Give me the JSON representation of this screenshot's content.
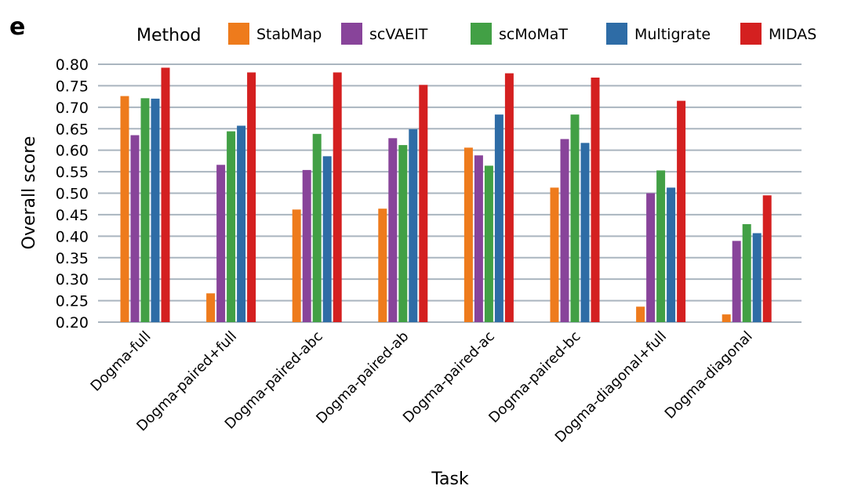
{
  "panel_label": "e",
  "chart_data": {
    "type": "bar",
    "title": "",
    "xlabel": "Task",
    "ylabel": "Overall score",
    "ylim": [
      0.2,
      0.8
    ],
    "yticks": [
      "0.20",
      "0.25",
      "0.30",
      "0.35",
      "0.40",
      "0.45",
      "0.50",
      "0.55",
      "0.60",
      "0.65",
      "0.70",
      "0.75",
      "0.80"
    ],
    "grid": true,
    "legend": {
      "title": "Method",
      "placement": "top"
    },
    "categories": [
      "Dogma-full",
      "Dogma-paired+full",
      "Dogma-paired-abc",
      "Dogma-paired-ab",
      "Dogma-paired-ac",
      "Dogma-paired-bc",
      "Dogma-diagonal+full",
      "Dogma-diagonal"
    ],
    "series": [
      {
        "name": "StabMap",
        "color": "#ee7b1c",
        "values": [
          0.726,
          0.267,
          0.462,
          0.464,
          0.606,
          0.513,
          0.236,
          0.218
        ]
      },
      {
        "name": "scVAEIT",
        "color": "#88449a",
        "values": [
          0.635,
          0.566,
          0.554,
          0.628,
          0.588,
          0.626,
          0.5,
          0.389
        ]
      },
      {
        "name": "scMoMaT",
        "color": "#42a045",
        "values": [
          0.721,
          0.644,
          0.638,
          0.612,
          0.564,
          0.683,
          0.553,
          0.428
        ]
      },
      {
        "name": "Multigrate",
        "color": "#2e6ca6",
        "values": [
          0.72,
          0.657,
          0.586,
          0.649,
          0.683,
          0.617,
          0.513,
          0.407
        ]
      },
      {
        "name": "MIDAS",
        "color": "#d42020",
        "values": [
          0.792,
          0.781,
          0.781,
          0.752,
          0.779,
          0.769,
          0.715,
          0.495
        ]
      }
    ]
  }
}
